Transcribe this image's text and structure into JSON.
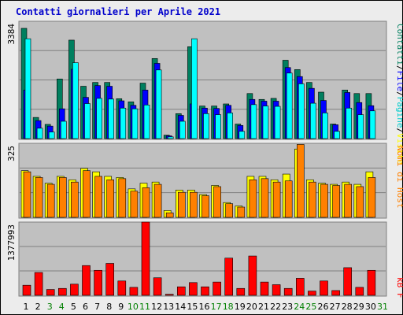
{
  "title": "Contatti giornalieri per Aprile 2021",
  "colors": {
    "background": "#ececec",
    "panel": "#c0c0c0",
    "grid": "#808080",
    "visits": "#007f5f",
    "pages": "#00ffff",
    "files": "#0000ff",
    "hosts": "#ff8000",
    "hosts_top": "#ffff00",
    "kbytes": "#ff0000",
    "weekend_label": "#007f00",
    "label_dark": "#000000",
    "title": "#0000cc"
  },
  "right_legend_top": [
    {
      "text": "Contatti",
      "color": "#007f5f"
    },
    {
      "text": "/",
      "color": "#000000"
    },
    {
      "text": "File",
      "color": "#0000ff"
    },
    {
      "text": "/",
      "color": "#000000"
    },
    {
      "text": "Pagine",
      "color": "#00cccc"
    },
    {
      "text": "/",
      "color": "#000000"
    },
    {
      "text": "Visite",
      "color": "#ffff00"
    }
  ],
  "right_legend_mid": "Nomi di Host",
  "right_legend_bot": "kB F",
  "chart_data": [
    {
      "type": "bar",
      "panel": "top",
      "ymax_label": "3384",
      "ylim": [
        0,
        3384
      ],
      "categories": [
        "1",
        "2",
        "3",
        "4",
        "5",
        "6",
        "7",
        "8",
        "9",
        "10",
        "11",
        "12",
        "13",
        "14",
        "15",
        "16",
        "17",
        "18",
        "19",
        "20",
        "21",
        "22",
        "23",
        "24",
        "25",
        "26",
        "27",
        "28",
        "29",
        "30",
        "31"
      ],
      "series": [
        {
          "name": "Contatti",
          "values": [
            3180,
            610,
            410,
            1720,
            2840,
            1510,
            1620,
            1620,
            1150,
            1060,
            1600,
            2310,
            100,
            720,
            2650,
            940,
            940,
            1000,
            420,
            1300,
            1130,
            1160,
            2260,
            1990,
            1620,
            1340,
            420,
            1400,
            1300,
            1300,
            0
          ]
        },
        {
          "name": "File",
          "values": [
            1400,
            520,
            360,
            860,
            2000,
            1190,
            1530,
            1510,
            1090,
            960,
            1400,
            2170,
            80,
            670,
            1000,
            880,
            870,
            960,
            380,
            1130,
            1080,
            1080,
            2050,
            1790,
            1450,
            1100,
            400,
            1330,
            1040,
            950,
            0
          ]
        },
        {
          "name": "Pagine",
          "values": [
            2880,
            300,
            190,
            500,
            2190,
            1010,
            1160,
            1140,
            880,
            860,
            970,
            1980,
            50,
            500,
            2880,
            720,
            690,
            740,
            210,
            980,
            940,
            930,
            1890,
            1580,
            1020,
            740,
            210,
            880,
            690,
            800,
            0
          ]
        }
      ]
    },
    {
      "type": "bar",
      "panel": "middle",
      "ymax_label": "325",
      "ylim": [
        0,
        325
      ],
      "categories": [
        "1",
        "2",
        "3",
        "4",
        "5",
        "6",
        "7",
        "8",
        "9",
        "10",
        "11",
        "12",
        "13",
        "14",
        "15",
        "16",
        "17",
        "18",
        "19",
        "20",
        "21",
        "22",
        "23",
        "24",
        "25",
        "26",
        "27",
        "28",
        "29",
        "30",
        "31"
      ],
      "series": [
        {
          "name": "Visite",
          "values": [
            205,
            180,
            150,
            180,
            165,
            215,
            200,
            180,
            175,
            125,
            150,
            155,
            30,
            120,
            120,
            100,
            140,
            65,
            50,
            180,
            180,
            165,
            190,
            300,
            165,
            150,
            145,
            155,
            145,
            200,
            0
          ]
        },
        {
          "name": "Nomi di Host",
          "values": [
            200,
            175,
            145,
            175,
            155,
            205,
            180,
            165,
            170,
            115,
            130,
            145,
            20,
            110,
            110,
            95,
            135,
            60,
            45,
            165,
            170,
            155,
            160,
            320,
            155,
            145,
            140,
            145,
            135,
            175,
            0
          ]
        }
      ]
    },
    {
      "type": "bar",
      "panel": "bottom",
      "ymax_label": "1377993",
      "ylim": [
        0,
        1377993
      ],
      "categories": [
        "1",
        "2",
        "3",
        "4",
        "5",
        "6",
        "7",
        "8",
        "9",
        "10",
        "11",
        "12",
        "13",
        "14",
        "15",
        "16",
        "17",
        "18",
        "19",
        "20",
        "21",
        "22",
        "23",
        "24",
        "25",
        "26",
        "27",
        "28",
        "29",
        "30",
        "31"
      ],
      "series": [
        {
          "name": "kB F",
          "values": [
            190000,
            430000,
            110000,
            130000,
            210000,
            560000,
            470000,
            600000,
            270000,
            150000,
            1377993,
            330000,
            20000,
            160000,
            240000,
            160000,
            250000,
            700000,
            130000,
            740000,
            250000,
            200000,
            130000,
            320000,
            80000,
            270000,
            90000,
            520000,
            150000,
            470000,
            0
          ]
        }
      ]
    }
  ]
}
